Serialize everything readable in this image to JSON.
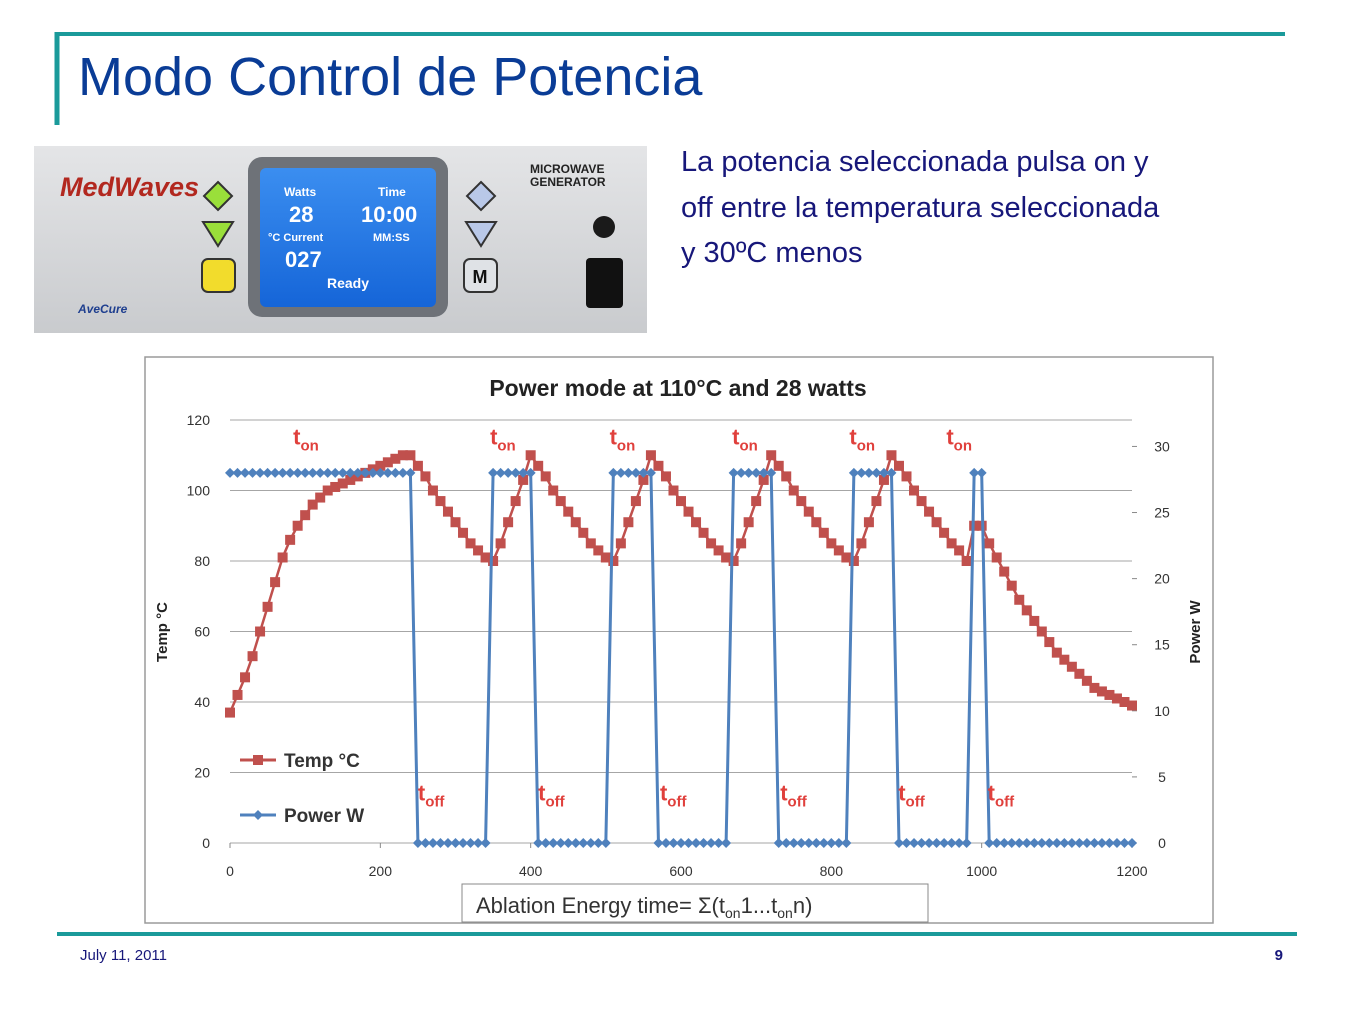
{
  "slide": {
    "title": "Modo Control de Potencia",
    "body_lines": [
      "La potencia seleccionada pulsa on y",
      "off entre la temperatura seleccionada",
      "y 30ºC menos"
    ],
    "date": "July 11, 2011",
    "page": "9"
  },
  "device": {
    "brand": "MedWaves",
    "model": "AveCure",
    "label_lines": [
      "MICROWAVE",
      "GENERATOR"
    ],
    "screen": {
      "watts_label": "Watts",
      "time_label": "Time",
      "watts": "28",
      "time": "10:00",
      "temp_label": "°C Current",
      "time_format": "MM:SS",
      "temp": "027",
      "status": "Ready"
    },
    "mode_button": "M"
  },
  "chart_data": {
    "type": "line",
    "title": "Power mode at 110°C and 28 watts",
    "y_label": "Temp °C",
    "y2_label": "Power W",
    "xlim": [
      0,
      1200
    ],
    "xticks": [
      0,
      200,
      400,
      600,
      800,
      1000,
      1200
    ],
    "ylim": [
      0,
      120
    ],
    "yticks": [
      0,
      20,
      40,
      60,
      80,
      100,
      120
    ],
    "y2lim": [
      0,
      32
    ],
    "y2ticks": [
      0,
      5,
      10,
      15,
      20,
      25,
      30
    ],
    "grid": true,
    "legend": "lower left",
    "x": [
      0,
      10,
      20,
      30,
      40,
      50,
      60,
      70,
      80,
      90,
      100,
      110,
      120,
      130,
      140,
      150,
      160,
      170,
      180,
      190,
      200,
      210,
      220,
      230,
      240,
      250,
      260,
      270,
      280,
      290,
      300,
      310,
      320,
      330,
      340,
      350,
      360,
      370,
      380,
      390,
      400,
      410,
      420,
      430,
      440,
      450,
      460,
      470,
      480,
      490,
      500,
      510,
      520,
      530,
      540,
      550,
      560,
      570,
      580,
      590,
      600,
      610,
      620,
      630,
      640,
      650,
      660,
      670,
      680,
      690,
      700,
      710,
      720,
      730,
      740,
      750,
      760,
      770,
      780,
      790,
      800,
      810,
      820,
      830,
      840,
      850,
      860,
      870,
      880,
      890,
      900,
      910,
      920,
      930,
      940,
      950,
      960,
      970,
      980,
      990,
      1000,
      1010,
      1020,
      1030,
      1040,
      1050,
      1060,
      1070,
      1080,
      1090,
      1100,
      1110,
      1120,
      1130,
      1140,
      1150,
      1160,
      1170,
      1180,
      1190,
      1200
    ],
    "series": [
      {
        "name": "Temp °C",
        "color": "#c0504d",
        "marker": "square",
        "values": [
          37,
          42,
          47,
          53,
          60,
          67,
          74,
          81,
          86,
          90,
          93,
          96,
          98,
          100,
          101,
          102,
          103,
          104,
          105,
          106,
          107,
          108,
          109,
          110,
          110,
          107,
          104,
          100,
          97,
          94,
          91,
          88,
          85,
          83,
          81,
          80,
          85,
          91,
          97,
          103,
          110,
          107,
          104,
          100,
          97,
          94,
          91,
          88,
          85,
          83,
          81,
          80,
          85,
          91,
          97,
          103,
          110,
          107,
          104,
          100,
          97,
          94,
          91,
          88,
          85,
          83,
          81,
          80,
          85,
          91,
          97,
          103,
          110,
          107,
          104,
          100,
          97,
          94,
          91,
          88,
          85,
          83,
          81,
          80,
          85,
          91,
          97,
          103,
          110,
          107,
          104,
          100,
          97,
          94,
          91,
          88,
          85,
          83,
          80,
          90,
          90,
          85,
          81,
          77,
          73,
          69,
          66,
          63,
          60,
          57,
          54,
          52,
          50,
          48,
          46,
          44,
          43,
          42,
          41,
          40,
          39
        ]
      },
      {
        "name": "Power W",
        "color": "#4f81bd",
        "marker": "diamond",
        "axis": "y2",
        "values": [
          28,
          28,
          28,
          28,
          28,
          28,
          28,
          28,
          28,
          28,
          28,
          28,
          28,
          28,
          28,
          28,
          28,
          28,
          28,
          28,
          28,
          28,
          28,
          28,
          28,
          0,
          0,
          0,
          0,
          0,
          0,
          0,
          0,
          0,
          0,
          28,
          28,
          28,
          28,
          28,
          28,
          0,
          0,
          0,
          0,
          0,
          0,
          0,
          0,
          0,
          0,
          28,
          28,
          28,
          28,
          28,
          28,
          0,
          0,
          0,
          0,
          0,
          0,
          0,
          0,
          0,
          0,
          28,
          28,
          28,
          28,
          28,
          28,
          0,
          0,
          0,
          0,
          0,
          0,
          0,
          0,
          0,
          0,
          28,
          28,
          28,
          28,
          28,
          28,
          0,
          0,
          0,
          0,
          0,
          0,
          0,
          0,
          0,
          0,
          28,
          28,
          0,
          0,
          0,
          0,
          0,
          0,
          0,
          0,
          0,
          0,
          0,
          0,
          0,
          0,
          0,
          0,
          0,
          0,
          0,
          0
        ]
      }
    ],
    "annotations": [
      {
        "text": "t",
        "sub": "on",
        "x": 84,
        "y": 113
      },
      {
        "text": "t",
        "sub": "on",
        "x": 346,
        "y": 113
      },
      {
        "text": "t",
        "sub": "on",
        "x": 505,
        "y": 113
      },
      {
        "text": "t",
        "sub": "on",
        "x": 668,
        "y": 113
      },
      {
        "text": "t",
        "sub": "on",
        "x": 824,
        "y": 113
      },
      {
        "text": "t",
        "sub": "on",
        "x": 953,
        "y": 113
      },
      {
        "text": "t",
        "sub": "off",
        "x": 250,
        "y": 12
      },
      {
        "text": "t",
        "sub": "off",
        "x": 410,
        "y": 12
      },
      {
        "text": "t",
        "sub": "off",
        "x": 572,
        "y": 12
      },
      {
        "text": "t",
        "sub": "off",
        "x": 732,
        "y": 12
      },
      {
        "text": "t",
        "sub": "off",
        "x": 889,
        "y": 12
      },
      {
        "text": "t",
        "sub": "off",
        "x": 1008,
        "y": 12
      }
    ],
    "formula_parts": [
      "Ablation Energy time= Σ(t",
      "on",
      "1...t",
      "on",
      "n)"
    ]
  }
}
